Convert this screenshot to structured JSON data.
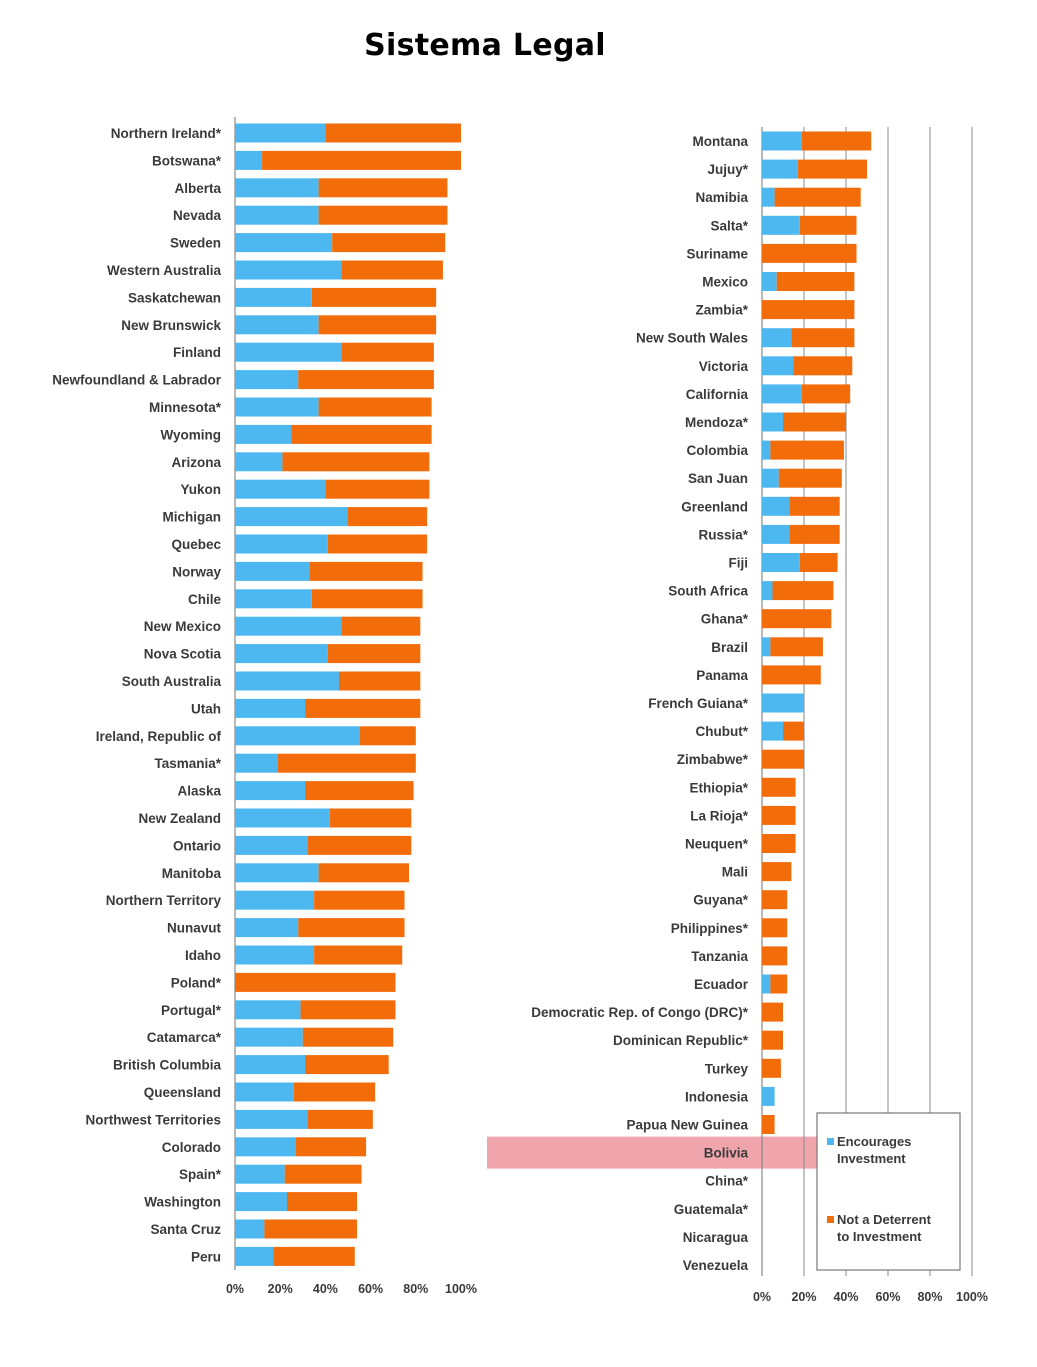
{
  "title": "Sistema Legal",
  "colors": {
    "encourages": "#4db8f0",
    "not_deterrent": "#f36c0a",
    "highlight": "#f0a5ad",
    "grid": "#888888"
  },
  "legend": {
    "encourages": "Encourages Investment",
    "not_deterrent": "Not a Deterrent to Investment"
  },
  "highlighted_category": "Bolivia",
  "chart_data": [
    {
      "type": "bar",
      "orientation": "horizontal",
      "stacked": true,
      "xlim": [
        0,
        100
      ],
      "xticks": [
        "0%",
        "20%",
        "40%",
        "60%",
        "80%",
        "100%"
      ],
      "categories": [
        "Northern Ireland*",
        "Botswana*",
        "Alberta",
        "Nevada",
        "Sweden",
        "Western Australia",
        "Saskatchewan",
        "New Brunswick",
        "Finland",
        "Newfoundland & Labrador",
        "Minnesota*",
        "Wyoming",
        "Arizona",
        "Yukon",
        "Michigan",
        "Quebec",
        "Norway",
        "Chile",
        "New Mexico",
        "Nova Scotia",
        "South Australia",
        "Utah",
        "Ireland, Republic of",
        "Tasmania*",
        "Alaska",
        "New Zealand",
        "Ontario",
        "Manitoba",
        "Northern Territory",
        "Nunavut",
        "Idaho",
        "Poland*",
        "Portugal*",
        "Catamarca*",
        "British Columbia",
        "Queensland",
        "Northwest Territories",
        "Colorado",
        "Spain*",
        "Washington",
        "Santa Cruz",
        "Peru"
      ],
      "series": [
        {
          "name": "Encourages Investment",
          "values": [
            40,
            12,
            37,
            37,
            43,
            47,
            34,
            37,
            47,
            28,
            37,
            25,
            21,
            40,
            50,
            41,
            33,
            34,
            47,
            41,
            46,
            31,
            55,
            19,
            31,
            42,
            32,
            37,
            35,
            28,
            35,
            0,
            29,
            30,
            31,
            26,
            32,
            27,
            22,
            23,
            13,
            17
          ]
        },
        {
          "name": "Not a Deterrent to Investment",
          "values": [
            60,
            88,
            57,
            57,
            50,
            45,
            55,
            52,
            41,
            60,
            50,
            62,
            65,
            46,
            35,
            44,
            50,
            49,
            35,
            41,
            36,
            51,
            25,
            61,
            48,
            36,
            46,
            40,
            40,
            47,
            39,
            71,
            42,
            40,
            37,
            36,
            29,
            31,
            34,
            31,
            41,
            36
          ]
        }
      ]
    },
    {
      "type": "bar",
      "orientation": "horizontal",
      "stacked": true,
      "xlim": [
        0,
        100
      ],
      "xticks": [
        "0%",
        "20%",
        "40%",
        "60%",
        "80%",
        "100%"
      ],
      "categories": [
        "Montana",
        "Jujuy*",
        "Namibia",
        "Salta*",
        "Suriname",
        "Mexico",
        "Zambia*",
        "New South Wales",
        "Victoria",
        "California",
        "Mendoza*",
        "Colombia",
        "San Juan",
        "Greenland",
        "Russia*",
        "Fiji",
        "South Africa",
        "Ghana*",
        "Brazil",
        "Panama",
        "French Guiana*",
        "Chubut*",
        "Zimbabwe*",
        "Ethiopia*",
        "La Rioja*",
        "Neuquen*",
        "Mali",
        "Guyana*",
        "Philippines*",
        "Tanzania",
        "Ecuador",
        "Democratic Rep. of Congo (DRC)*",
        "Dominican Republic*",
        "Turkey",
        "Indonesia",
        "Papua New Guinea",
        "Bolivia",
        "China*",
        "Guatemala*",
        "Nicaragua",
        "Venezuela"
      ],
      "series": [
        {
          "name": "Encourages Investment",
          "values": [
            19,
            17,
            6,
            18,
            0,
            7,
            0,
            14,
            15,
            19,
            10,
            4,
            8,
            13,
            13,
            18,
            5,
            0,
            4,
            0,
            20,
            10,
            0,
            0,
            0,
            0,
            0,
            0,
            0,
            0,
            4,
            0,
            0,
            0,
            6,
            0,
            0,
            0,
            0,
            0,
            0
          ]
        },
        {
          "name": "Not a Deterrent to Investment",
          "values": [
            33,
            33,
            41,
            27,
            45,
            37,
            44,
            30,
            28,
            23,
            30,
            35,
            30,
            24,
            24,
            18,
            29,
            33,
            25,
            28,
            0,
            10,
            20,
            16,
            16,
            16,
            14,
            12,
            12,
            12,
            8,
            10,
            10,
            9,
            0,
            6,
            0,
            0,
            0,
            0,
            0
          ]
        }
      ]
    }
  ]
}
